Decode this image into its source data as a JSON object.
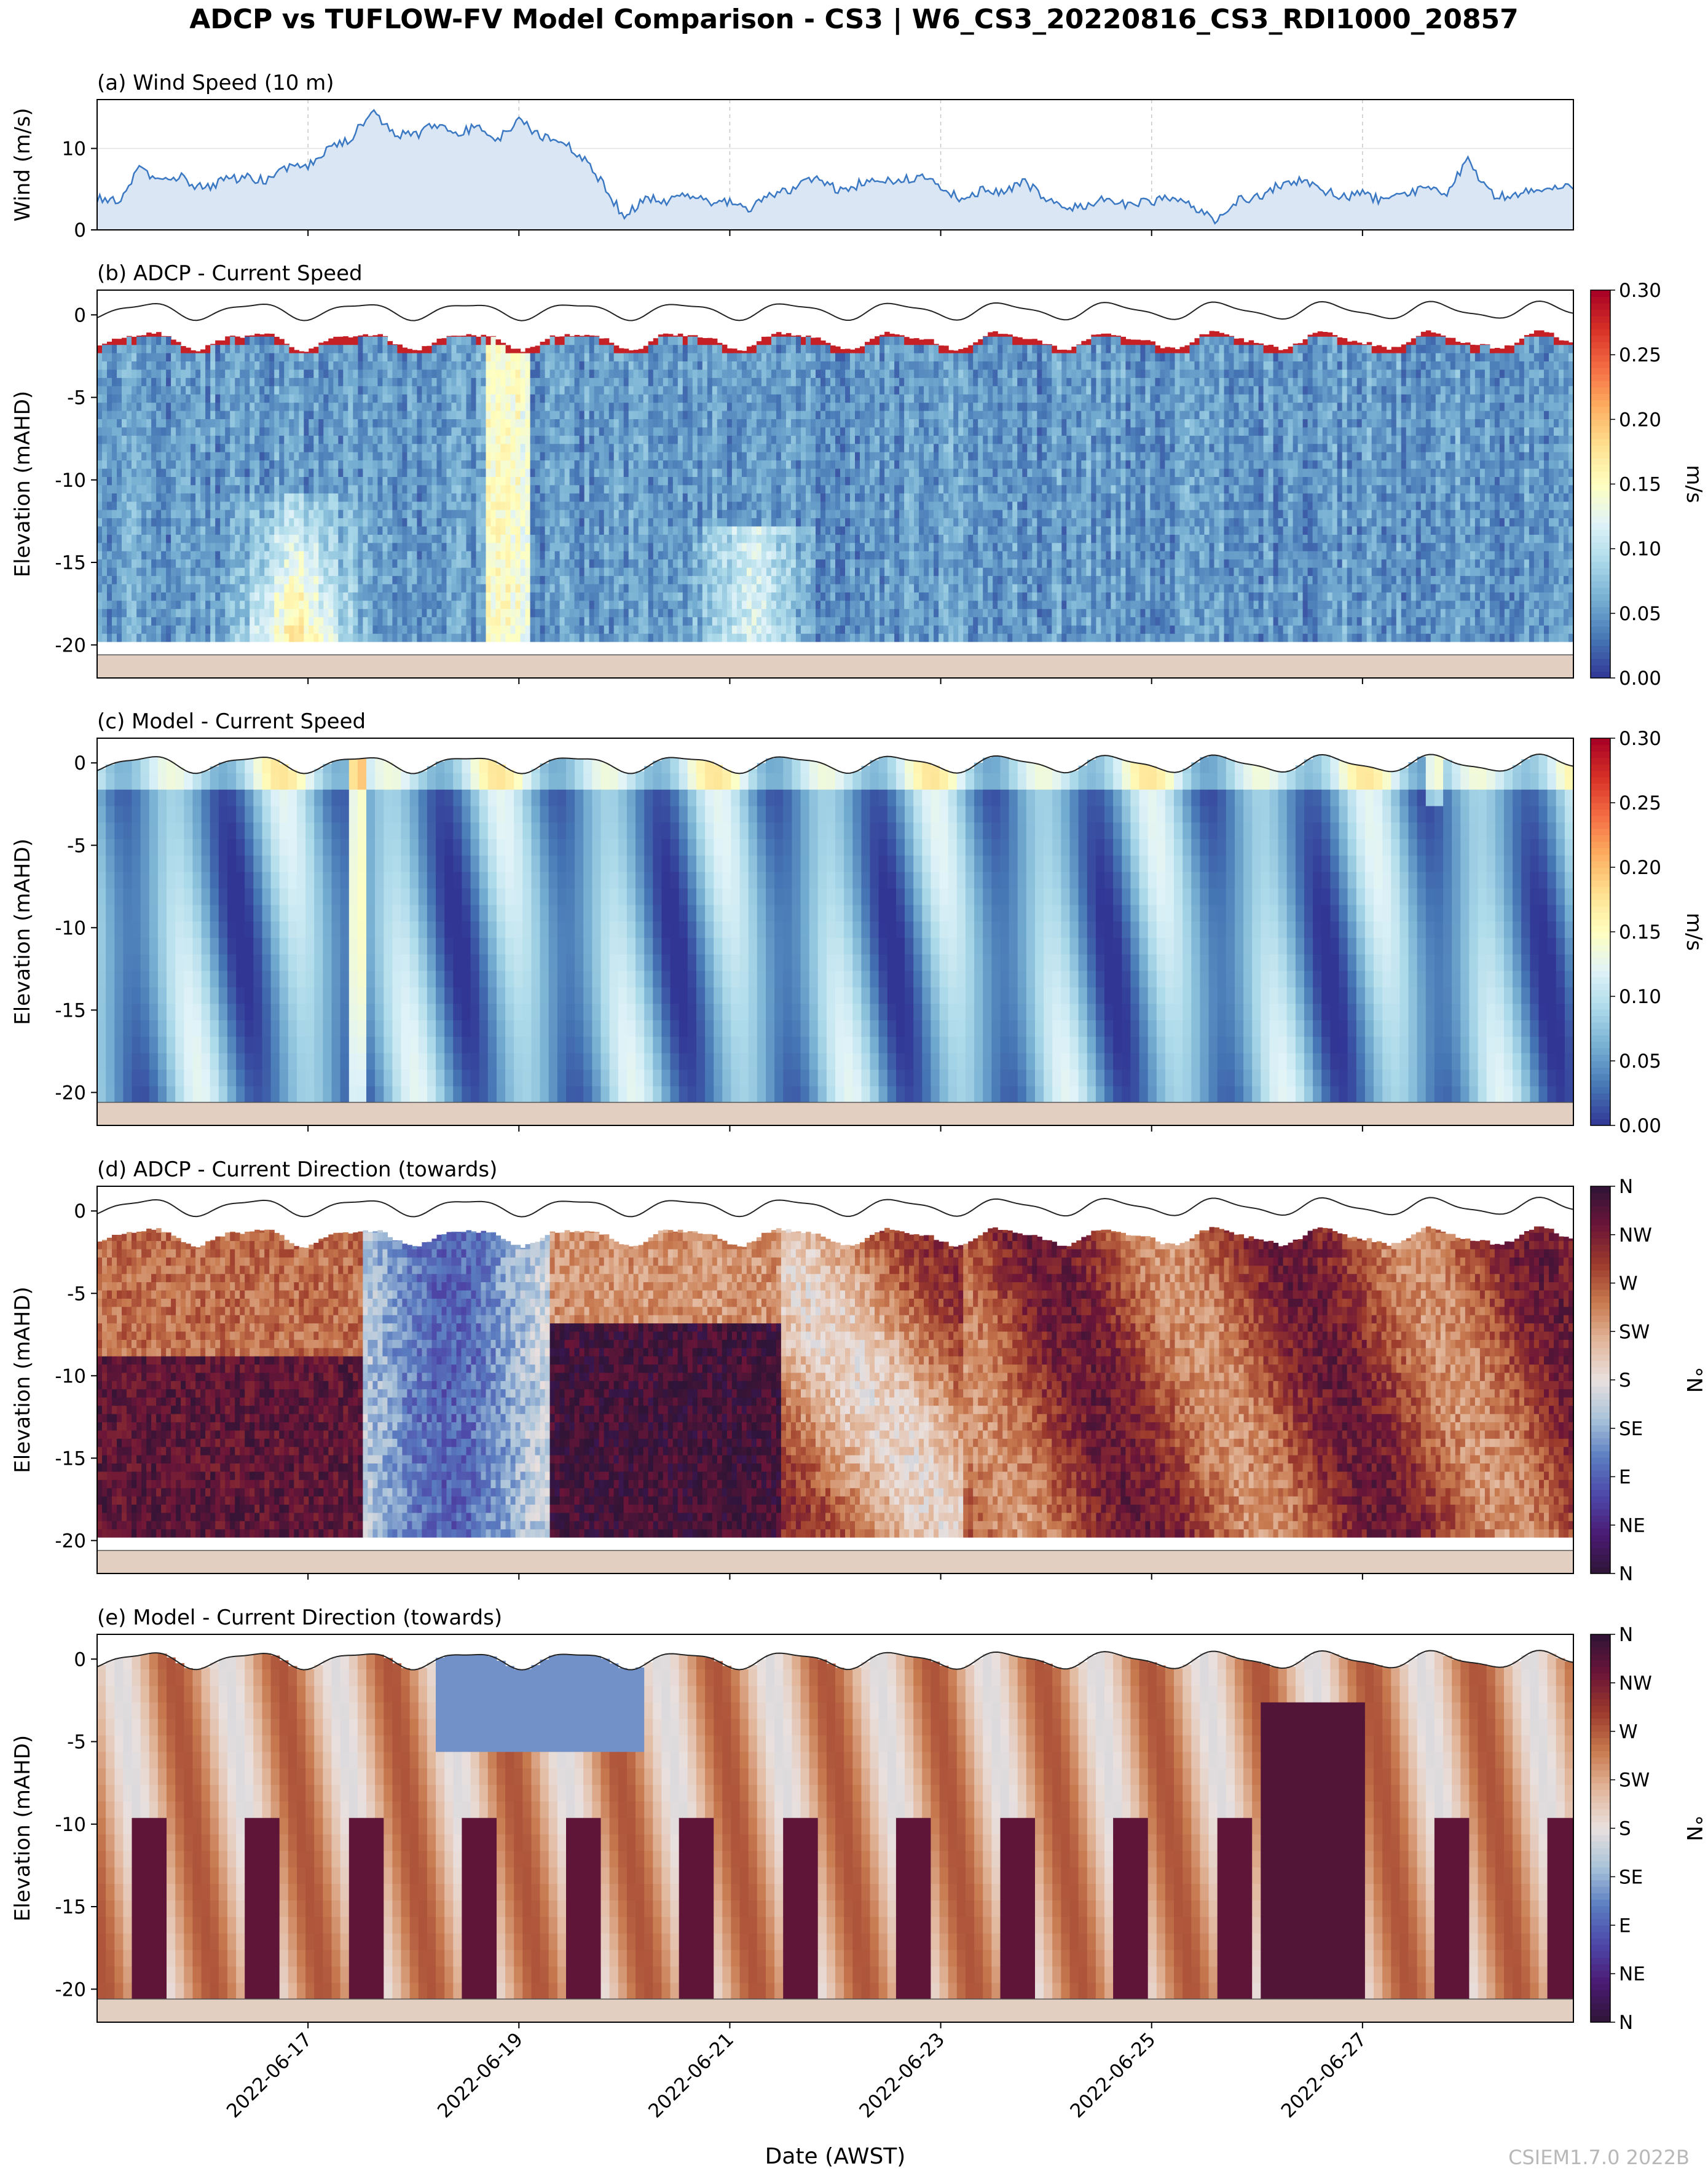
{
  "figure": {
    "title": "ADCP vs TUFLOW-FV Model Comparison - CS3 | W6_CS3_20220816_CS3_RDI1000_20857",
    "watermark": "CSIEM1.7.0 2022B",
    "xlabel": "Date (AWST)",
    "xticks": [
      "2022-06-17",
      "2022-06-19",
      "2022-06-21",
      "2022-06-23",
      "2022-06-25",
      "2022-06-27"
    ],
    "x_range_days": [
      15.0,
      29.0
    ],
    "xtick_days": [
      17,
      19,
      21,
      23,
      25,
      27
    ]
  },
  "colors": {
    "wind_line": "#3a78c3",
    "wind_fill": "#dbe6f4",
    "seabed": "#e2cfc2",
    "grid": "#c8c8c8",
    "speed_cmap": [
      "#313695",
      "#4575b4",
      "#74add1",
      "#abd9e9",
      "#e0f3f8",
      "#ffffbf",
      "#fee090",
      "#fdae61",
      "#f46d43",
      "#d73027",
      "#a50026"
    ],
    "direction_cmap": [
      "#2f1436",
      "#4a1a73",
      "#4d47a8",
      "#5a7cc0",
      "#a9c3da",
      "#e9e0de",
      "#e2b79c",
      "#c87a4f",
      "#9c3a2c",
      "#6b1538",
      "#2f1436"
    ]
  },
  "chart_data": [
    {
      "id": "a",
      "type": "area",
      "title": "(a) Wind Speed (10 m)",
      "ylabel": "Wind (m/s)",
      "ylim": [
        0,
        16
      ],
      "yticks": [
        "0",
        "10"
      ],
      "x_days": [
        15.0,
        15.2,
        15.4,
        15.6,
        15.8,
        16.0,
        16.2,
        16.4,
        16.6,
        16.8,
        17.0,
        17.2,
        17.4,
        17.6,
        17.8,
        18.0,
        18.2,
        18.4,
        18.6,
        18.8,
        19.0,
        19.2,
        19.4,
        19.6,
        19.8,
        20.0,
        20.2,
        20.4,
        20.6,
        20.8,
        21.0,
        21.2,
        21.4,
        21.6,
        21.8,
        22.0,
        22.2,
        22.4,
        22.6,
        22.8,
        23.0,
        23.2,
        23.4,
        23.6,
        23.8,
        24.0,
        24.2,
        24.4,
        24.6,
        24.8,
        25.0,
        25.2,
        25.4,
        25.6,
        25.8,
        26.0,
        26.2,
        26.4,
        26.6,
        26.8,
        27.0,
        27.2,
        27.4,
        27.6,
        27.8,
        28.0,
        28.2,
        28.4,
        28.6,
        28.8,
        29.0
      ],
      "values": [
        4.0,
        3.5,
        7.5,
        6.0,
        6.5,
        5.0,
        6.0,
        6.5,
        6.0,
        7.5,
        8.0,
        10.0,
        11.0,
        14.5,
        12.0,
        11.5,
        13.0,
        12.0,
        12.5,
        11.0,
        13.5,
        11.5,
        11.0,
        9.0,
        5.5,
        1.5,
        4.0,
        3.5,
        4.5,
        3.5,
        3.5,
        2.5,
        4.5,
        5.0,
        6.5,
        5.0,
        5.5,
        6.5,
        6.0,
        6.5,
        5.5,
        3.5,
        5.0,
        4.5,
        6.0,
        3.5,
        2.5,
        3.0,
        4.0,
        3.0,
        3.5,
        4.0,
        3.0,
        1.0,
        3.5,
        4.0,
        5.5,
        6.0,
        5.0,
        4.0,
        4.5,
        3.5,
        4.5,
        5.0,
        4.5,
        8.5,
        4.5,
        4.0,
        5.0,
        5.5,
        5.0
      ]
    },
    {
      "id": "b",
      "type": "heatmap",
      "title": "(b) ADCP - Current Speed",
      "ylabel": "Elevation (mAHD)",
      "ylim": [
        -22,
        1.5
      ],
      "yticks": [
        "0",
        "-5",
        "-10",
        "-15",
        "-20"
      ],
      "colorbar": {
        "label": "m/s",
        "min": 0.0,
        "max": 0.3,
        "ticks": [
          "0.00",
          "0.05",
          "0.10",
          "0.15",
          "0.20",
          "0.25",
          "0.30"
        ]
      },
      "seabed": -20.6
    },
    {
      "id": "c",
      "type": "heatmap",
      "title": "(c) Model - Current Speed",
      "ylabel": "Elevation (mAHD)",
      "ylim": [
        -22,
        1.5
      ],
      "yticks": [
        "0",
        "-5",
        "-10",
        "-15",
        "-20"
      ],
      "colorbar": {
        "label": "m/s",
        "min": 0.0,
        "max": 0.3,
        "ticks": [
          "0.00",
          "0.05",
          "0.10",
          "0.15",
          "0.20",
          "0.25",
          "0.30"
        ]
      },
      "seabed": -20.6
    },
    {
      "id": "d",
      "type": "heatmap",
      "title": "(d) ADCP - Current Direction (towards)",
      "ylabel": "Elevation (mAHD)",
      "ylim": [
        -22,
        1.5
      ],
      "yticks": [
        "0",
        "-5",
        "-10",
        "-15",
        "-20"
      ],
      "colorbar": {
        "label": "°N",
        "min": 0,
        "max": 360,
        "ticks": [
          "N",
          "NE",
          "E",
          "SE",
          "S",
          "SW",
          "W",
          "NW",
          "N"
        ]
      },
      "seabed": -20.6
    },
    {
      "id": "e",
      "type": "heatmap",
      "title": "(e) Model - Current Direction (towards)",
      "ylabel": "Elevation (mAHD)",
      "ylim": [
        -22,
        1.5
      ],
      "yticks": [
        "0",
        "-5",
        "-10",
        "-15",
        "-20"
      ],
      "colorbar": {
        "label": "°N",
        "min": 0,
        "max": 360,
        "ticks": [
          "N",
          "NE",
          "E",
          "SE",
          "S",
          "SW",
          "W",
          "NW",
          "N"
        ]
      },
      "seabed": -20.6
    }
  ]
}
